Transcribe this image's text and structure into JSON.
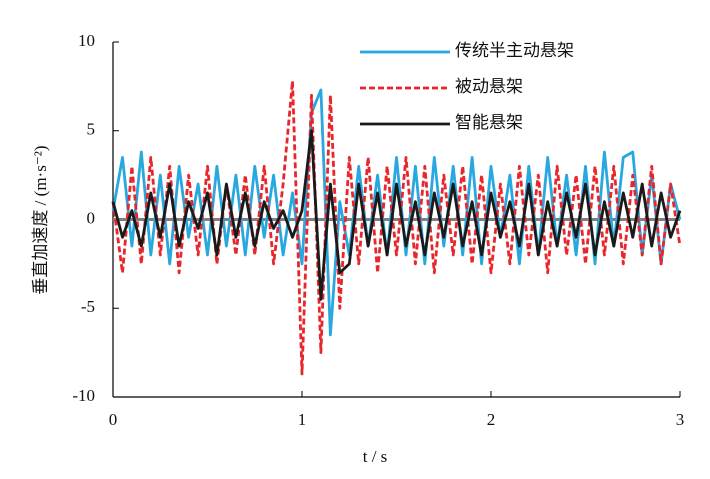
{
  "chart_data": {
    "type": "line",
    "xlabel": "t / s",
    "ylabel": "垂直加速度 / (m·s⁻²)",
    "x": [
      0,
      0.05,
      0.1,
      0.15,
      0.2,
      0.25,
      0.3,
      0.35,
      0.4,
      0.45,
      0.5,
      0.55,
      0.6,
      0.65,
      0.7,
      0.75,
      0.8,
      0.85,
      0.9,
      0.95,
      1,
      1.05,
      1.1,
      1.15,
      1.2,
      1.25,
      1.3,
      1.35,
      1.4,
      1.45,
      1.5,
      1.55,
      1.6,
      1.65,
      1.7,
      1.75,
      1.8,
      1.85,
      1.9,
      1.95,
      2,
      2.05,
      2.1,
      2.15,
      2.2,
      2.25,
      2.3,
      2.35,
      2.4,
      2.45,
      2.5,
      2.55,
      2.6,
      2.65,
      2.7,
      2.75,
      2.8,
      2.85,
      2.9,
      2.95,
      3
    ],
    "series": [
      {
        "name": "传统半主动悬架",
        "color": "#29a8e0",
        "dash": false,
        "values": [
          0.5,
          3.5,
          -1.5,
          3.8,
          -2,
          2.5,
          -2.5,
          3,
          -1,
          2,
          -2,
          3,
          -1.5,
          2.5,
          -2,
          3,
          -1,
          2.5,
          -2,
          1.5,
          -2.5,
          6,
          7.3,
          -6.5,
          1,
          -2,
          3,
          -1.5,
          2.5,
          -2,
          3.5,
          -2,
          3,
          -2.5,
          3.5,
          -1.5,
          3,
          -2,
          3.5,
          -2.5,
          3,
          -1,
          2.5,
          -2.5,
          3,
          -2,
          3.5,
          -1.5,
          2.5,
          -2,
          3,
          -2.5,
          3.8,
          -1.5,
          3.5,
          3.8,
          -2,
          2.5,
          -2.5,
          2,
          0
        ]
      },
      {
        "name": "被动悬架",
        "color": "#e8262b",
        "dash": true,
        "values": [
          1,
          -3,
          3,
          -2.5,
          3.5,
          -2,
          3,
          -3,
          2.5,
          -2,
          3,
          -2.5,
          2,
          -2,
          2.5,
          -2,
          3,
          -2.5,
          2,
          7.8,
          -8.7,
          7,
          -7.5,
          7,
          -5,
          3.5,
          -2.5,
          3.5,
          -3,
          3,
          -2,
          3.5,
          -2.5,
          3,
          -3,
          2.5,
          -2,
          3,
          -2.5,
          2.5,
          -3,
          2,
          -2.5,
          3,
          -2,
          2.5,
          -3,
          3,
          -2,
          2.5,
          -2.5,
          3,
          -2,
          3,
          -2.5,
          2.5,
          -2,
          3,
          -2.5,
          2,
          -1.5
        ]
      },
      {
        "name": "智能悬架",
        "color": "#1a1a1a",
        "dash": false,
        "values": [
          1,
          -1,
          0.5,
          -1.5,
          1.5,
          -1,
          2,
          -1.5,
          1,
          -0.5,
          1.5,
          -2,
          2,
          -1,
          1.5,
          -1.5,
          1,
          -0.5,
          0.5,
          -1,
          0.5,
          5,
          -4.5,
          2,
          -3,
          -2.5,
          2,
          -1.5,
          1.5,
          -2,
          2,
          -1.5,
          1,
          -2,
          1.5,
          -1,
          2,
          -1.5,
          1,
          -2,
          1.5,
          -1,
          1,
          -1.5,
          2,
          -2,
          1,
          -1.5,
          1.5,
          -1,
          2,
          -2,
          1,
          -1.5,
          1.5,
          -1,
          2,
          -1.5,
          1.5,
          -1,
          0.5
        ]
      }
    ],
    "xlim": [
      0,
      3
    ],
    "xticks": [
      0,
      1,
      2,
      3
    ],
    "ylim": [
      -10,
      10
    ],
    "yticks": [
      10,
      5,
      0,
      -5,
      -10
    ],
    "legend": "upper right",
    "grid": false
  }
}
